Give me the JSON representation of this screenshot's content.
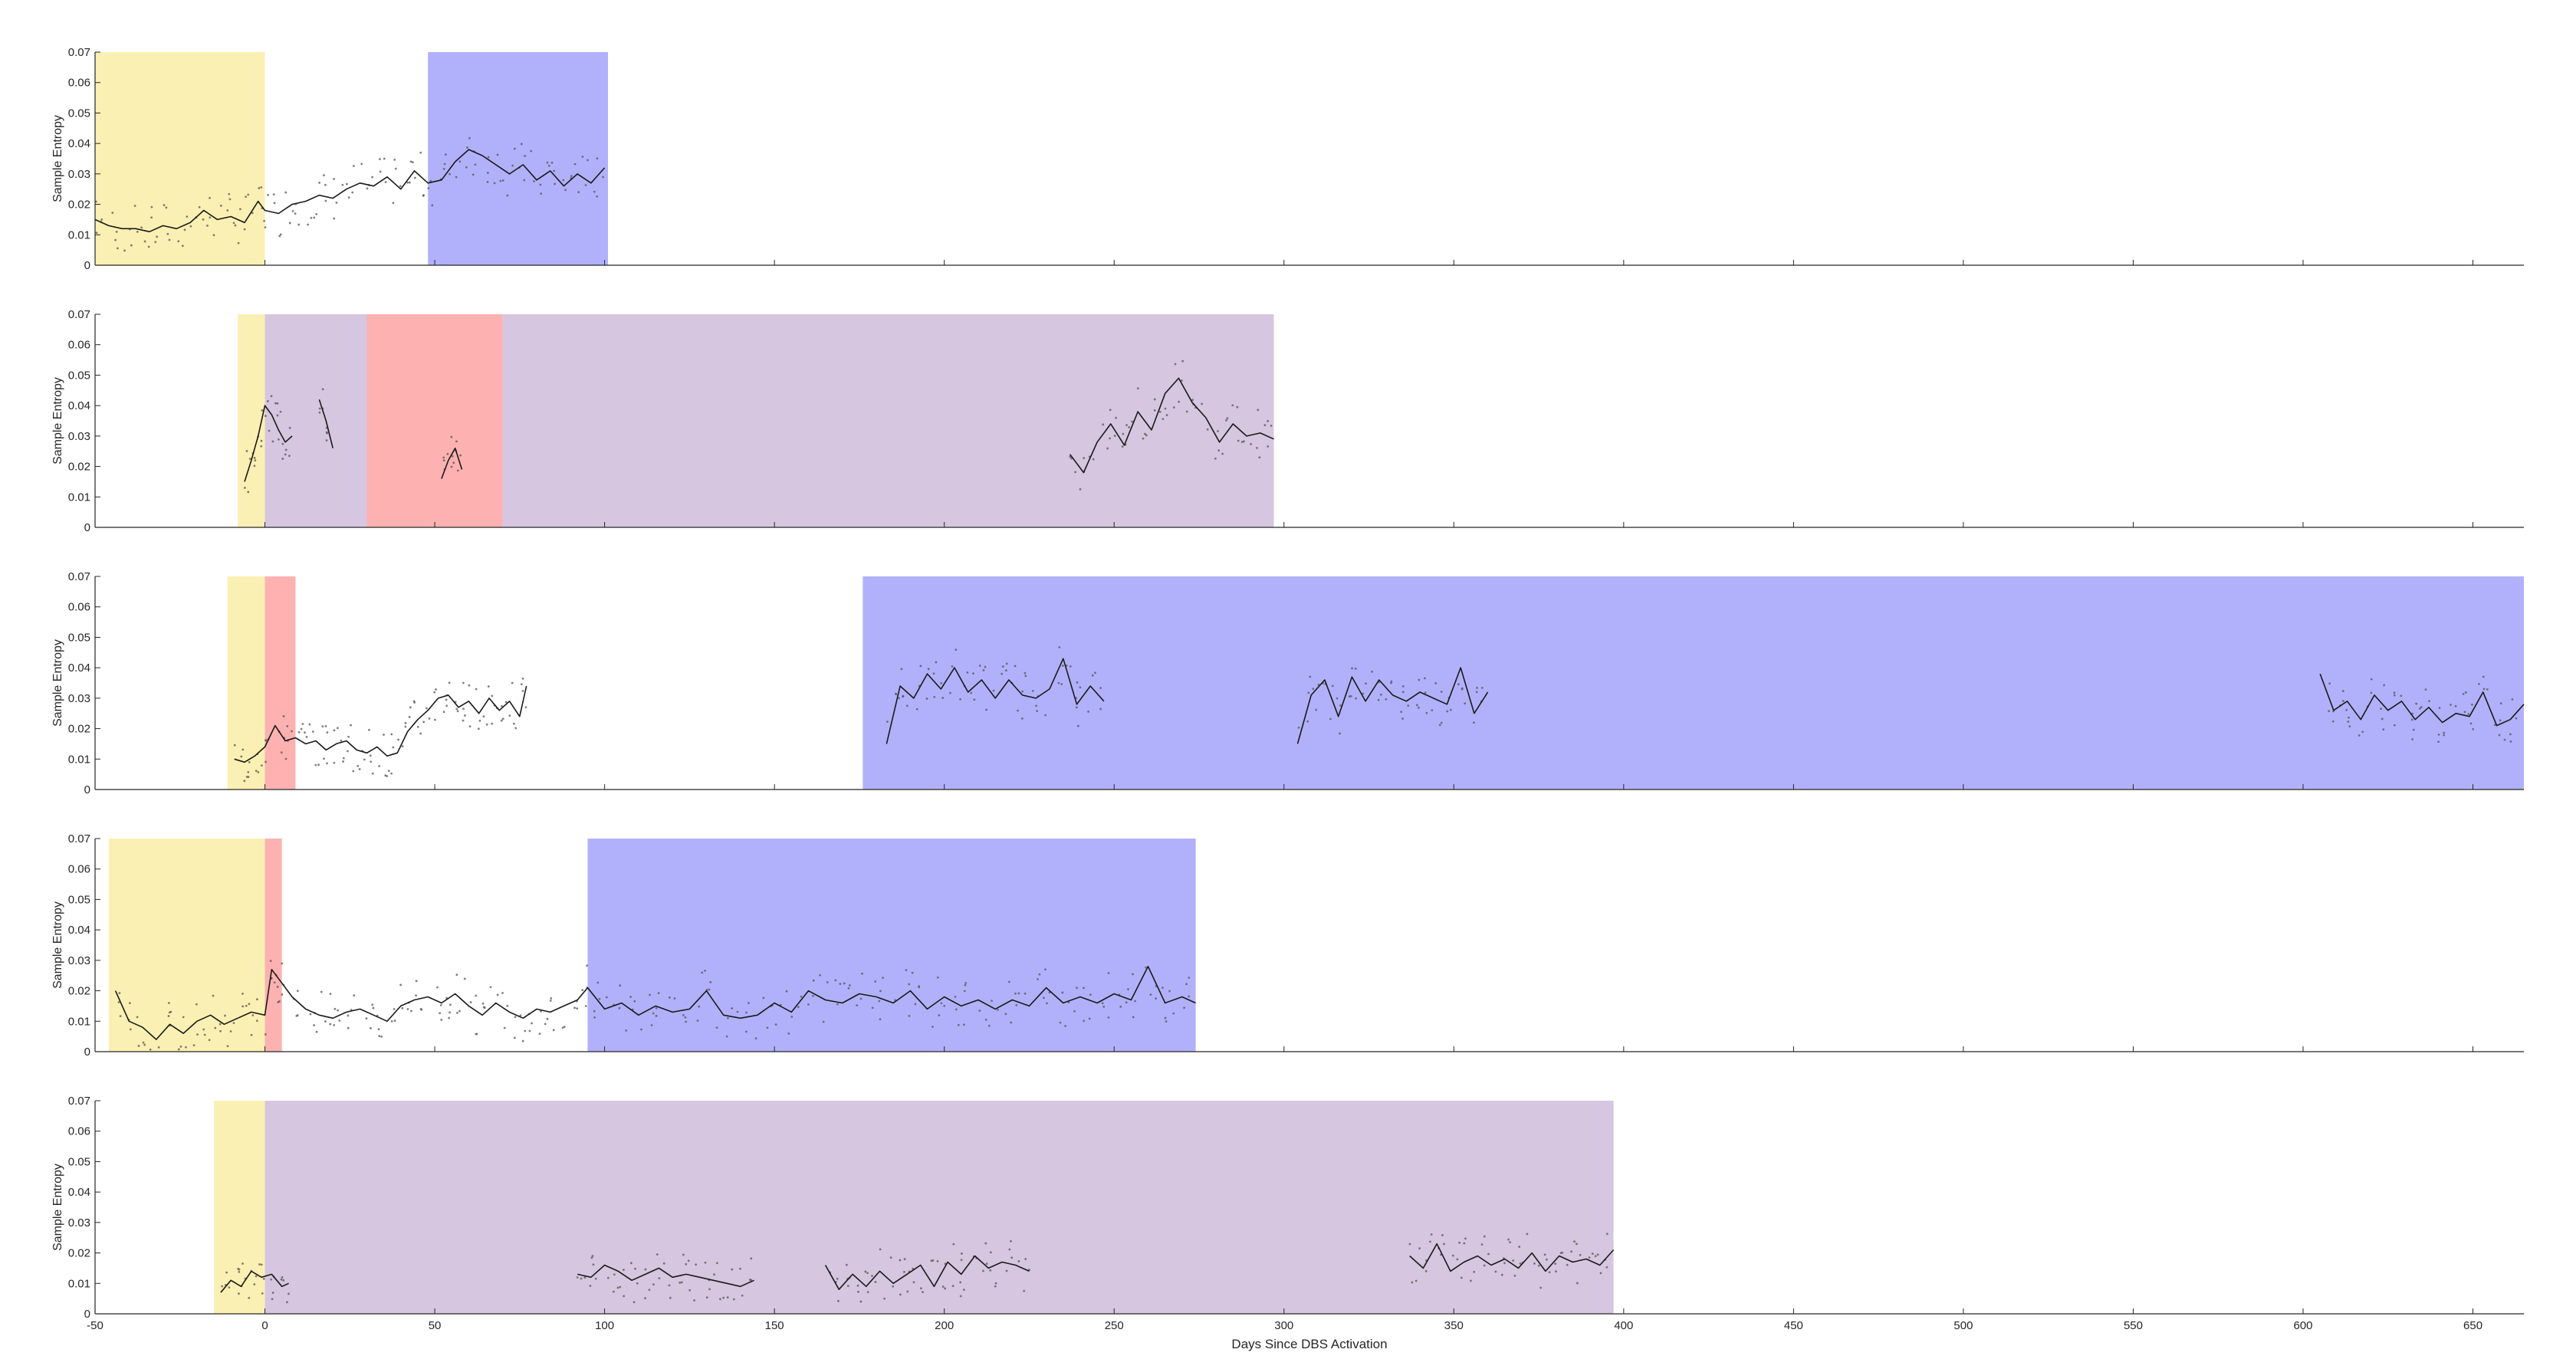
{
  "chart_data": {
    "type": "line",
    "xlabel": "Days Since DBS Activation",
    "ylabel": "Sample Entropy",
    "xlim": [
      -50,
      665
    ],
    "ylim": [
      0,
      0.07
    ],
    "xticks": [
      -50,
      0,
      50,
      100,
      150,
      200,
      250,
      300,
      350,
      400,
      450,
      500,
      550,
      600,
      650
    ],
    "yticks": [
      0,
      0.01,
      0.02,
      0.03,
      0.04,
      0.05,
      0.06,
      0.07
    ],
    "grid": false,
    "legend": "none",
    "colors": {
      "pre": "#fbf0b3",
      "purple": "#d6c6df",
      "red": "#fdb1b1",
      "blue": "#b1b1fb",
      "line": "#1a1a1a",
      "dot": "#555555",
      "axis": "#262626"
    },
    "panels": [
      {
        "shaded_regions": [
          {
            "x0": -50,
            "x1": 0,
            "color": "pre"
          },
          {
            "x0": 48,
            "x1": 101,
            "color": "blue"
          }
        ],
        "segments": [
          {
            "x": [
              -50,
              -46,
              -42,
              -38,
              -34,
              -30,
              -26,
              -22,
              -18,
              -14,
              -10,
              -6,
              -2,
              0,
              4,
              8,
              12,
              16,
              20,
              24,
              28,
              32,
              36,
              40,
              44,
              48,
              52,
              56,
              60,
              64,
              68,
              72,
              76,
              80,
              84,
              88,
              92,
              96,
              100
            ],
            "y": [
              0.015,
              0.013,
              0.012,
              0.012,
              0.011,
              0.013,
              0.012,
              0.014,
              0.018,
              0.015,
              0.016,
              0.014,
              0.021,
              0.018,
              0.017,
              0.02,
              0.021,
              0.023,
              0.022,
              0.025,
              0.027,
              0.026,
              0.029,
              0.025,
              0.031,
              0.027,
              0.028,
              0.034,
              0.038,
              0.036,
              0.033,
              0.03,
              0.033,
              0.028,
              0.031,
              0.026,
              0.03,
              0.027,
              0.032
            ]
          }
        ]
      },
      {
        "shaded_regions": [
          {
            "x0": -8,
            "x1": 0,
            "color": "pre"
          },
          {
            "x0": 0,
            "x1": 30,
            "color": "purple"
          },
          {
            "x0": 30,
            "x1": 70,
            "color": "red"
          },
          {
            "x0": 70,
            "x1": 297,
            "color": "purple"
          }
        ],
        "segments": [
          {
            "x": [
              -6,
              -4,
              -2,
              0,
              2,
              4,
              6,
              8
            ],
            "y": [
              0.015,
              0.022,
              0.03,
              0.04,
              0.037,
              0.032,
              0.028,
              0.03
            ]
          },
          {
            "x": [
              16,
              18,
              20
            ],
            "y": [
              0.042,
              0.035,
              0.026
            ]
          },
          {
            "x": [
              52,
              54,
              56,
              58
            ],
            "y": [
              0.016,
              0.022,
              0.026,
              0.019
            ]
          },
          {
            "x": [
              237,
              241,
              245,
              249,
              253,
              257,
              261,
              265,
              269,
              273,
              277,
              281,
              285,
              289,
              293,
              297
            ],
            "y": [
              0.024,
              0.018,
              0.028,
              0.034,
              0.027,
              0.038,
              0.032,
              0.044,
              0.049,
              0.041,
              0.036,
              0.028,
              0.034,
              0.03,
              0.031,
              0.029
            ]
          }
        ]
      },
      {
        "shaded_regions": [
          {
            "x0": -11,
            "x1": 0,
            "color": "pre"
          },
          {
            "x0": 0,
            "x1": 9,
            "color": "red"
          },
          {
            "x0": 176,
            "x1": 665,
            "color": "blue"
          }
        ],
        "segments": [
          {
            "x": [
              -9,
              -6,
              -3,
              0,
              3,
              6,
              9,
              12,
              15,
              18,
              21,
              24,
              27,
              30,
              33,
              36,
              39,
              42,
              45,
              48,
              51,
              54,
              57,
              60,
              63,
              66,
              69,
              72,
              75,
              77
            ],
            "y": [
              0.01,
              0.009,
              0.011,
              0.014,
              0.021,
              0.016,
              0.017,
              0.015,
              0.016,
              0.013,
              0.015,
              0.016,
              0.013,
              0.012,
              0.014,
              0.011,
              0.012,
              0.019,
              0.023,
              0.026,
              0.03,
              0.031,
              0.027,
              0.029,
              0.025,
              0.03,
              0.026,
              0.029,
              0.024,
              0.034
            ]
          },
          {
            "x": [
              183,
              187,
              191,
              195,
              199,
              203,
              207,
              211,
              215,
              219,
              223,
              227,
              231,
              235,
              239,
              243,
              247
            ],
            "y": [
              0.015,
              0.034,
              0.03,
              0.038,
              0.033,
              0.04,
              0.032,
              0.036,
              0.03,
              0.036,
              0.031,
              0.03,
              0.033,
              0.043,
              0.028,
              0.034,
              0.029
            ]
          },
          {
            "x": [
              304,
              308,
              312,
              316,
              320,
              324,
              328,
              332,
              336,
              340,
              344,
              348,
              352,
              356,
              360
            ],
            "y": [
              0.015,
              0.031,
              0.036,
              0.024,
              0.037,
              0.029,
              0.036,
              0.031,
              0.029,
              0.032,
              0.03,
              0.028,
              0.04,
              0.025,
              0.032
            ]
          },
          {
            "x": [
              605,
              609,
              613,
              617,
              621,
              625,
              629,
              633,
              637,
              641,
              645,
              649,
              653,
              657,
              661,
              665
            ],
            "y": [
              0.038,
              0.026,
              0.029,
              0.023,
              0.031,
              0.026,
              0.029,
              0.023,
              0.027,
              0.022,
              0.025,
              0.024,
              0.032,
              0.021,
              0.023,
              0.028
            ]
          }
        ]
      },
      {
        "shaded_regions": [
          {
            "x0": -46,
            "x1": 0,
            "color": "pre"
          },
          {
            "x0": 0,
            "x1": 5,
            "color": "red"
          },
          {
            "x0": 95,
            "x1": 274,
            "color": "blue"
          }
        ],
        "segments": [
          {
            "x": [
              -44,
              -40,
              -36,
              -32,
              -28,
              -24,
              -20,
              -16,
              -12,
              -8,
              -4,
              0,
              2,
              4,
              8,
              12,
              16,
              20,
              24,
              28,
              32,
              36,
              40,
              44,
              48,
              52,
              56,
              60,
              64,
              68,
              72,
              76,
              80,
              84,
              88,
              92,
              95,
              100,
              105,
              110,
              115,
              120,
              125,
              130,
              135,
              140,
              145,
              150,
              155,
              160,
              165,
              170,
              175,
              180,
              185,
              190,
              195,
              200,
              205,
              210,
              215,
              220,
              225,
              230,
              235,
              240,
              245,
              250,
              255,
              260,
              265,
              270,
              274
            ],
            "y": [
              0.02,
              0.01,
              0.008,
              0.004,
              0.009,
              0.006,
              0.01,
              0.012,
              0.009,
              0.011,
              0.013,
              0.012,
              0.027,
              0.024,
              0.018,
              0.014,
              0.012,
              0.011,
              0.013,
              0.014,
              0.012,
              0.01,
              0.015,
              0.017,
              0.018,
              0.016,
              0.019,
              0.015,
              0.012,
              0.016,
              0.013,
              0.011,
              0.014,
              0.013,
              0.015,
              0.017,
              0.021,
              0.014,
              0.016,
              0.012,
              0.015,
              0.013,
              0.014,
              0.02,
              0.012,
              0.011,
              0.012,
              0.016,
              0.013,
              0.02,
              0.017,
              0.016,
              0.019,
              0.018,
              0.016,
              0.02,
              0.014,
              0.018,
              0.015,
              0.017,
              0.014,
              0.017,
              0.015,
              0.021,
              0.016,
              0.018,
              0.016,
              0.019,
              0.017,
              0.028,
              0.016,
              0.018,
              0.016
            ]
          }
        ]
      },
      {
        "shaded_regions": [
          {
            "x0": -15,
            "x1": 0,
            "color": "pre"
          },
          {
            "x0": 0,
            "x1": 397,
            "color": "purple"
          }
        ],
        "segments": [
          {
            "x": [
              -13,
              -10,
              -7,
              -4,
              -1,
              2,
              5,
              7
            ],
            "y": [
              0.007,
              0.011,
              0.009,
              0.014,
              0.012,
              0.013,
              0.009,
              0.01
            ]
          },
          {
            "x": [
              92,
              96,
              100,
              104,
              108,
              112,
              116,
              120,
              124,
              128,
              132,
              136,
              140,
              144
            ],
            "y": [
              0.013,
              0.012,
              0.016,
              0.014,
              0.011,
              0.013,
              0.015,
              0.012,
              0.013,
              0.012,
              0.011,
              0.01,
              0.009,
              0.011
            ]
          },
          {
            "x": [
              165,
              169,
              173,
              177,
              181,
              185,
              189,
              193,
              197,
              201,
              205,
              209,
              213,
              217,
              221,
              225
            ],
            "y": [
              0.016,
              0.008,
              0.013,
              0.009,
              0.014,
              0.01,
              0.013,
              0.016,
              0.009,
              0.017,
              0.013,
              0.019,
              0.015,
              0.017,
              0.016,
              0.014
            ]
          },
          {
            "x": [
              337,
              341,
              345,
              349,
              353,
              357,
              361,
              365,
              369,
              373,
              377,
              381,
              385,
              389,
              393,
              397
            ],
            "y": [
              0.019,
              0.015,
              0.023,
              0.014,
              0.017,
              0.019,
              0.016,
              0.018,
              0.015,
              0.02,
              0.014,
              0.019,
              0.017,
              0.018,
              0.016,
              0.021
            ]
          }
        ]
      }
    ]
  }
}
